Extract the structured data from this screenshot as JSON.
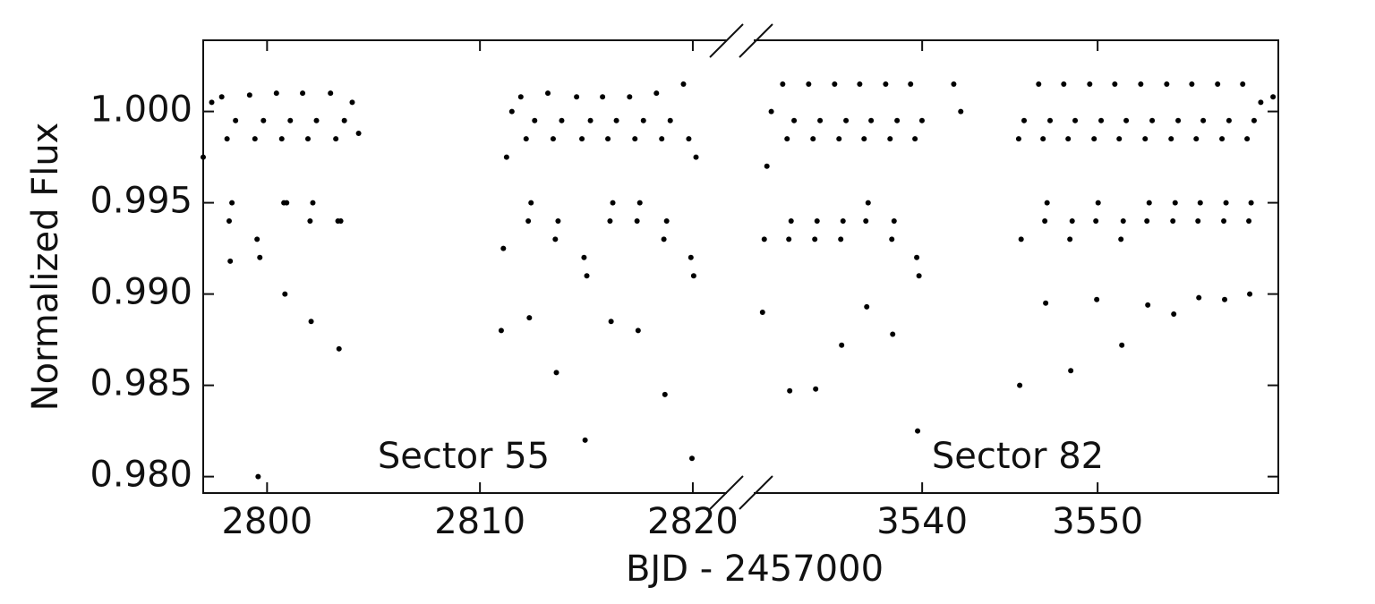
{
  "chart_data": [
    {
      "type": "scatter",
      "color": "#000000",
      "annotation": "Sector 55",
      "ylabel": "Normalized Flux",
      "xlabel": "BJD - 2457000",
      "xlim": [
        2797.0,
        2821.6
      ],
      "xticks": [
        2800,
        2810,
        2820
      ],
      "ylim": [
        0.9791,
        1.0039
      ],
      "yticks": [
        {
          "value": 0.98,
          "label": "0.980"
        },
        {
          "value": 0.985,
          "label": "0.985"
        },
        {
          "value": 0.99,
          "label": "0.990"
        },
        {
          "value": 0.995,
          "label": "0.995"
        },
        {
          "value": 1.0,
          "label": "1.000"
        }
      ],
      "x": [
        2797.0,
        2797.4,
        2797.87,
        2798.12,
        2798.22,
        2798.27,
        2798.35,
        2798.52,
        2799.18,
        2799.43,
        2799.53,
        2799.58,
        2799.66,
        2799.83,
        2800.44,
        2800.69,
        2800.79,
        2800.84,
        2800.92,
        2801.09,
        2801.67,
        2801.92,
        2802.02,
        2802.07,
        2802.15,
        2802.32,
        2802.98,
        2803.23,
        2803.33,
        2803.38,
        2803.46,
        2803.63,
        2804.0,
        2804.3,
        2811.0,
        2811.1,
        2811.25,
        2811.5,
        2811.92,
        2812.17,
        2812.27,
        2812.32,
        2812.4,
        2812.57,
        2813.19,
        2813.44,
        2813.54,
        2813.59,
        2813.67,
        2813.84,
        2814.54,
        2814.79,
        2814.89,
        2814.94,
        2815.02,
        2815.19,
        2815.76,
        2816.01,
        2816.11,
        2816.16,
        2816.24,
        2816.41,
        2817.03,
        2817.28,
        2817.38,
        2817.43,
        2817.51,
        2817.68,
        2818.29,
        2818.54,
        2818.64,
        2818.69,
        2818.77,
        2818.94,
        2819.56,
        2819.81,
        2819.91,
        2819.96,
        2820.04,
        2820.15
      ],
      "values": [
        0.9975,
        1.0005,
        1.0008,
        0.9985,
        0.994,
        0.9918,
        0.995,
        0.9995,
        1.0009,
        0.9985,
        0.993,
        0.98,
        0.992,
        0.9995,
        1.001,
        0.9985,
        0.995,
        0.99,
        0.995,
        0.9995,
        1.001,
        0.9985,
        0.994,
        0.9885,
        0.995,
        0.9995,
        1.001,
        0.9985,
        0.994,
        0.987,
        0.994,
        0.9995,
        1.0005,
        0.9988,
        0.988,
        0.9925,
        0.9975,
        1.0,
        1.0008,
        0.9985,
        0.994,
        0.9887,
        0.995,
        0.9995,
        1.001,
        0.9985,
        0.993,
        0.9857,
        0.994,
        0.9995,
        1.0008,
        0.9985,
        0.992,
        0.982,
        0.991,
        0.9995,
        1.0008,
        0.9985,
        0.994,
        0.9885,
        0.995,
        0.9995,
        1.0008,
        0.9985,
        0.994,
        0.988,
        0.995,
        0.9995,
        1.001,
        0.9985,
        0.993,
        0.9845,
        0.994,
        0.9995,
        1.0015,
        0.9985,
        0.992,
        0.981,
        0.991,
        0.9975
      ]
    },
    {
      "type": "scatter",
      "color": "#000000",
      "annotation": "Sector 82",
      "xlim": [
        3530.4,
        3560.3
      ],
      "xticks": [
        3540,
        3550
      ],
      "ylim": [
        0.9791,
        1.0039
      ],
      "x": [
        3530.9,
        3531.0,
        3531.15,
        3531.4,
        3532.05,
        3532.3,
        3532.4,
        3532.45,
        3532.53,
        3532.7,
        3533.53,
        3533.78,
        3533.88,
        3533.93,
        3534.01,
        3534.18,
        3535.01,
        3535.26,
        3535.36,
        3535.41,
        3535.49,
        3535.66,
        3536.44,
        3536.69,
        3536.79,
        3536.84,
        3536.92,
        3537.09,
        3537.92,
        3538.17,
        3538.27,
        3538.32,
        3538.4,
        3538.57,
        3539.34,
        3539.59,
        3539.69,
        3539.74,
        3539.82,
        3539.99,
        3541.8,
        3542.2,
        3545.5,
        3545.56,
        3545.64,
        3545.81,
        3546.64,
        3546.89,
        3546.99,
        3547.04,
        3547.12,
        3547.29,
        3548.07,
        3548.32,
        3548.42,
        3548.47,
        3548.55,
        3548.72,
        3549.55,
        3549.8,
        3549.9,
        3549.95,
        3550.03,
        3550.2,
        3550.98,
        3551.23,
        3551.33,
        3551.38,
        3551.46,
        3551.63,
        3552.46,
        3552.71,
        3552.81,
        3552.86,
        3552.94,
        3553.11,
        3553.94,
        3554.19,
        3554.29,
        3554.34,
        3554.42,
        3554.59,
        3555.37,
        3555.62,
        3555.72,
        3555.77,
        3555.85,
        3556.02,
        3556.84,
        3557.09,
        3557.19,
        3557.24,
        3557.32,
        3557.49,
        3558.27,
        3558.52,
        3558.62,
        3558.67,
        3558.75,
        3558.92,
        3559.3,
        3560.0
      ],
      "values": [
        0.989,
        0.993,
        0.997,
        1.0,
        1.0015,
        0.9985,
        0.993,
        0.9847,
        0.994,
        0.9995,
        1.0015,
        0.9985,
        0.993,
        0.9848,
        0.994,
        0.9995,
        1.0015,
        0.9985,
        0.993,
        0.9872,
        0.994,
        0.9995,
        1.0015,
        0.9985,
        0.994,
        0.9893,
        0.995,
        0.9995,
        1.0015,
        0.9985,
        0.993,
        0.9878,
        0.994,
        0.9995,
        1.0015,
        0.9985,
        0.992,
        0.9825,
        0.991,
        0.9995,
        1.0015,
        1.0,
        0.9985,
        0.985,
        0.993,
        0.9995,
        1.0015,
        0.9985,
        0.994,
        0.9895,
        0.995,
        0.9995,
        1.0015,
        0.9985,
        0.993,
        0.9858,
        0.994,
        0.9995,
        1.0015,
        0.9985,
        0.994,
        0.9897,
        0.995,
        0.9995,
        1.0015,
        0.9985,
        0.993,
        0.9872,
        0.994,
        0.9995,
        1.0015,
        0.9985,
        0.994,
        0.9894,
        0.995,
        0.9995,
        1.0015,
        0.9985,
        0.994,
        0.9889,
        0.995,
        0.9995,
        1.0015,
        0.9985,
        0.994,
        0.9898,
        0.995,
        0.9995,
        1.0015,
        0.9985,
        0.994,
        0.9897,
        0.995,
        0.9995,
        1.0015,
        0.9985,
        0.994,
        0.99,
        0.995,
        0.9995,
        1.0005,
        1.0008
      ]
    }
  ]
}
